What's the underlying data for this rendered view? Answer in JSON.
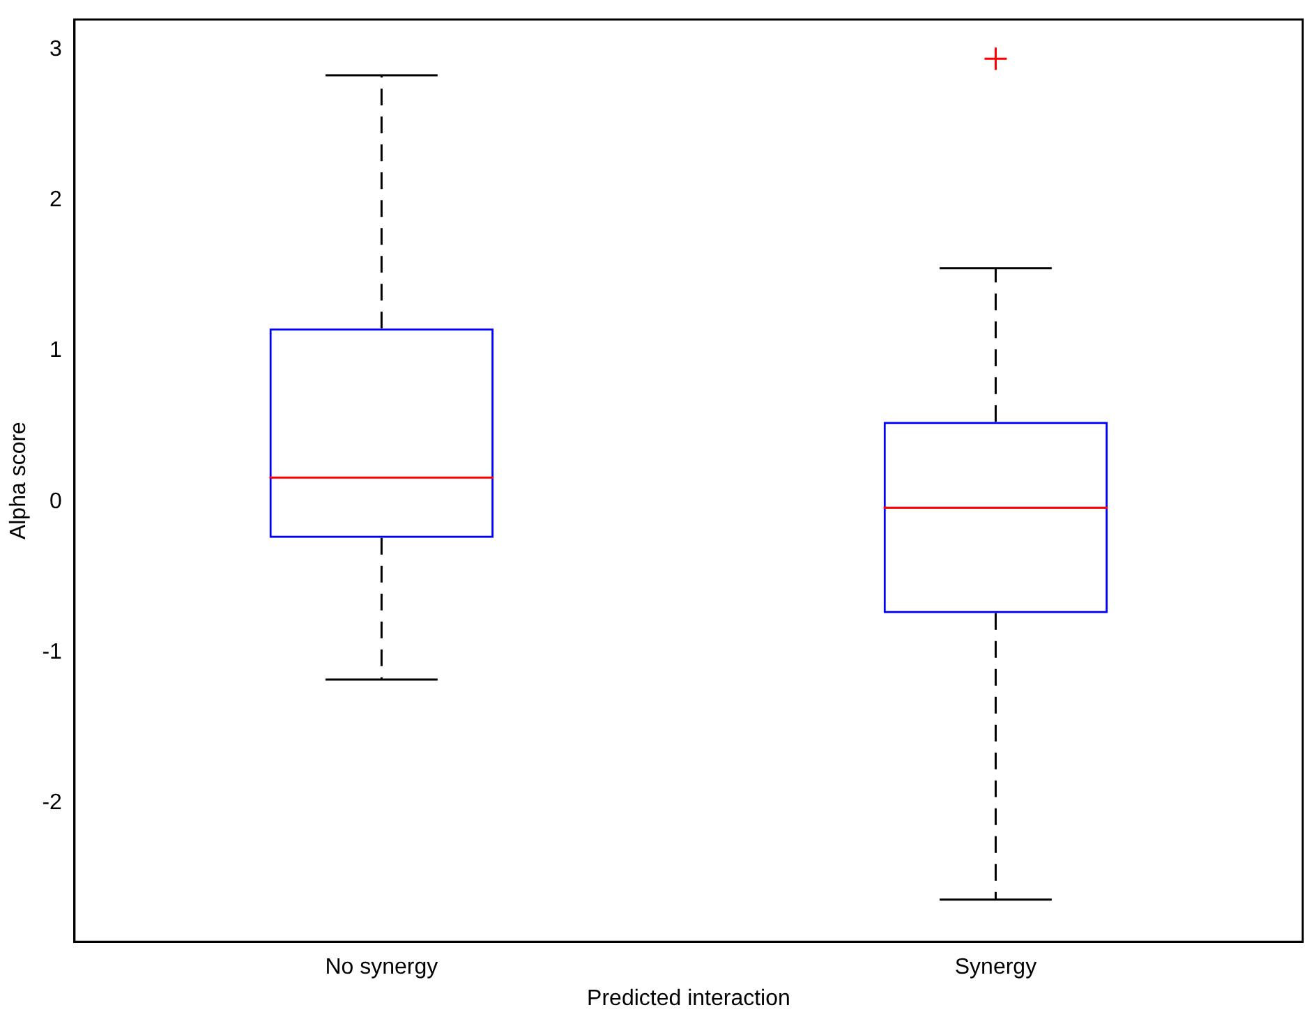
{
  "chart_data": {
    "type": "box",
    "categories": [
      "No synergy",
      "Synergy"
    ],
    "boxes": [
      {
        "low": -1.18,
        "q1": -0.24,
        "median": 0.16,
        "q3": 1.15,
        "high": 2.83
      },
      {
        "low": -2.64,
        "q1": -0.74,
        "median": -0.04,
        "q3": 0.53,
        "high": 1.55,
        "outliers": [
          2.94
        ]
      }
    ],
    "color": "#0000ff",
    "xlabel": "Predicted interaction",
    "ylabel": "Alpha score",
    "ylim": [
      -2.92,
      3.2
    ],
    "yticks": [
      -2,
      -1,
      0,
      1,
      2,
      3
    ],
    "grid": false,
    "legend": false
  }
}
